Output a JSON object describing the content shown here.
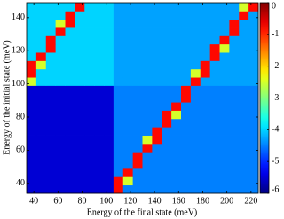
{
  "chart_data": {
    "type": "heatmap",
    "xlabel": "Energy of the final state (meV)",
    "ylabel": "Energy of the initial state (meV)",
    "colormap": "jet",
    "x": [
      38,
      46,
      54,
      62,
      70,
      78,
      86,
      94,
      102,
      110,
      118,
      126,
      134,
      142,
      150,
      158,
      166,
      174,
      182,
      190,
      198,
      206,
      214,
      222
    ],
    "y": [
      36.5,
      41.5,
      46.5,
      51.5,
      56.5,
      61.5,
      66.5,
      71.5,
      76.5,
      81.5,
      86.5,
      91.5,
      96.5,
      101.5,
      106.5,
      111.5,
      116.5,
      121.5,
      126.5,
      131.5,
      136.5,
      141.5,
      146.5
    ],
    "z": [
      [
        -5.5,
        -5.5,
        -5.5,
        -5.5,
        -5.5,
        -5.5,
        -5.5,
        -5.5,
        -5.5,
        -0.8,
        -4.5,
        -4.5,
        -4.5,
        -4.5,
        -4.5,
        -4.5,
        -4.5,
        -4.5,
        -4.5,
        -4.5,
        -4.5,
        -4.5,
        -4.5,
        -4.5
      ],
      [
        -5.5,
        -5.5,
        -5.5,
        -5.5,
        -5.5,
        -5.5,
        -5.5,
        -5.5,
        -5.5,
        -0.8,
        -2.5,
        -4.5,
        -4.5,
        -4.5,
        -4.5,
        -4.5,
        -4.5,
        -4.5,
        -4.5,
        -4.5,
        -4.5,
        -4.5,
        -4.5,
        -4.5
      ],
      [
        -5.5,
        -5.5,
        -5.5,
        -5.5,
        -5.5,
        -5.5,
        -5.5,
        -5.5,
        -5.5,
        -4.5,
        -0.8,
        -4.5,
        -4.5,
        -4.5,
        -4.5,
        -4.5,
        -4.5,
        -4.5,
        -4.5,
        -4.5,
        -4.5,
        -4.5,
        -4.5,
        -4.5
      ],
      [
        -5.5,
        -5.5,
        -5.5,
        -5.5,
        -5.5,
        -5.5,
        -5.5,
        -5.5,
        -5.5,
        -4.5,
        -4.5,
        -0.8,
        -4.5,
        -4.5,
        -4.5,
        -4.5,
        -4.5,
        -4.5,
        -4.5,
        -4.5,
        -4.5,
        -4.5,
        -4.5,
        -4.5
      ],
      [
        -5.5,
        -5.5,
        -5.5,
        -5.5,
        -5.5,
        -5.5,
        -5.5,
        -5.5,
        -5.5,
        -4.5,
        -4.5,
        -0.8,
        -4.5,
        -4.5,
        -4.5,
        -4.5,
        -4.5,
        -4.5,
        -4.5,
        -4.5,
        -4.5,
        -4.5,
        -4.5,
        -4.5
      ],
      [
        -5.5,
        -5.5,
        -5.5,
        -5.5,
        -5.5,
        -5.5,
        -5.5,
        -5.5,
        -5.5,
        -4.5,
        -4.5,
        -4.5,
        -0.8,
        -4.5,
        -4.5,
        -4.5,
        -4.5,
        -4.5,
        -4.5,
        -4.5,
        -4.5,
        -4.5,
        -4.5,
        -4.5
      ],
      [
        -5.5,
        -5.5,
        -5.5,
        -5.5,
        -5.5,
        -5.5,
        -5.5,
        -5.5,
        -5.5,
        -4.5,
        -4.5,
        -4.5,
        -2.5,
        -0.8,
        -4.5,
        -4.5,
        -4.5,
        -4.5,
        -4.5,
        -4.5,
        -4.5,
        -4.5,
        -4.5,
        -4.5
      ],
      [
        -5.5,
        -5.5,
        -5.5,
        -5.5,
        -5.5,
        -5.5,
        -5.5,
        -5.5,
        -5.5,
        -4.5,
        -4.5,
        -4.5,
        -4.5,
        -0.8,
        -4.5,
        -4.5,
        -4.5,
        -4.5,
        -4.5,
        -4.5,
        -4.5,
        -4.5,
        -4.5,
        -4.5
      ],
      [
        -5.5,
        -5.5,
        -5.5,
        -5.5,
        -5.5,
        -5.5,
        -5.5,
        -5.5,
        -5.5,
        -4.5,
        -4.5,
        -4.5,
        -4.5,
        -4.5,
        -0.8,
        -4.5,
        -4.5,
        -4.5,
        -4.5,
        -4.5,
        -4.5,
        -4.5,
        -4.5,
        -4.5
      ],
      [
        -5.5,
        -5.5,
        -5.5,
        -5.5,
        -5.5,
        -5.5,
        -5.5,
        -5.5,
        -5.5,
        -4.5,
        -4.5,
        -4.5,
        -4.5,
        -4.5,
        -0.8,
        -2.5,
        -4.5,
        -4.5,
        -4.5,
        -4.5,
        -4.5,
        -4.5,
        -4.5,
        -4.5
      ],
      [
        -5.5,
        -5.5,
        -5.5,
        -5.5,
        -5.5,
        -5.5,
        -5.5,
        -5.5,
        -5.5,
        -4.5,
        -4.5,
        -4.5,
        -4.5,
        -4.5,
        -4.5,
        -0.8,
        -4.5,
        -4.5,
        -4.5,
        -4.5,
        -4.5,
        -4.5,
        -4.5,
        -4.5
      ],
      [
        -5.5,
        -5.5,
        -5.5,
        -5.5,
        -5.5,
        -5.5,
        -5.5,
        -5.5,
        -5.5,
        -4.5,
        -4.5,
        -4.5,
        -4.5,
        -4.5,
        -4.5,
        -4.5,
        -0.8,
        -4.5,
        -4.5,
        -4.5,
        -4.5,
        -4.5,
        -4.5,
        -4.5
      ],
      [
        -5.5,
        -5.5,
        -5.5,
        -5.5,
        -5.5,
        -5.5,
        -5.5,
        -5.5,
        -5.5,
        -4.5,
        -4.5,
        -4.5,
        -4.5,
        -4.5,
        -4.5,
        -4.5,
        -0.8,
        -4.5,
        -4.5,
        -4.5,
        -4.5,
        -4.5,
        -4.5,
        -4.5
      ],
      [
        -2.5,
        -4,
        -4,
        -4,
        -4,
        -4,
        -4,
        -4,
        -4,
        -4.3,
        -4.3,
        -4.3,
        -4.3,
        -4.3,
        -4.3,
        -4.3,
        -4.3,
        -0.8,
        -4.3,
        -4.3,
        -4.3,
        -4.3,
        -4.3,
        -4.3
      ],
      [
        -0.8,
        -4,
        -4,
        -4,
        -4,
        -4,
        -4,
        -4,
        -4,
        -4.3,
        -4.3,
        -4.3,
        -4.3,
        -4.3,
        -4.3,
        -4.3,
        -4.3,
        -2.5,
        -0.8,
        -4.3,
        -4.3,
        -4.3,
        -4.3,
        -4.3
      ],
      [
        -0.8,
        -2.5,
        -4,
        -4,
        -4,
        -4,
        -4,
        -4,
        -4,
        -4.3,
        -4.3,
        -4.3,
        -4.3,
        -4.3,
        -4.3,
        -4.3,
        -4.3,
        -4.3,
        -0.8,
        -4.3,
        -4.3,
        -4.3,
        -4.3,
        -4.3
      ],
      [
        -4,
        -0.8,
        -4,
        -4,
        -4,
        -4,
        -4,
        -4,
        -4,
        -4.3,
        -4.3,
        -4.3,
        -4.3,
        -4.3,
        -4.3,
        -4.3,
        -4.3,
        -4.3,
        -4.3,
        -0.8,
        -4.3,
        -4.3,
        -4.3,
        -4.3
      ],
      [
        -4,
        -4,
        -0.8,
        -4,
        -4,
        -4,
        -4,
        -4,
        -4,
        -4.3,
        -4.3,
        -4.3,
        -4.3,
        -4.3,
        -4.3,
        -4.3,
        -4.3,
        -4.3,
        -4.3,
        -0.8,
        -2.5,
        -4.3,
        -4.3,
        -4.3
      ],
      [
        -4,
        -4,
        -0.8,
        -4,
        -4,
        -4,
        -4,
        -4,
        -4,
        -4.3,
        -4.3,
        -4.3,
        -4.3,
        -4.3,
        -4.3,
        -4.3,
        -4.3,
        -4.3,
        -4.3,
        -4.3,
        -0.8,
        -4.3,
        -4.3,
        -4.3
      ],
      [
        -4,
        -4,
        -4,
        -0.8,
        -4,
        -4,
        -4,
        -4,
        -4,
        -4.3,
        -4.3,
        -4.3,
        -4.3,
        -4.3,
        -4.3,
        -4.3,
        -4.3,
        -4.3,
        -4.3,
        -4.3,
        -4.3,
        -0.8,
        -4.3,
        -4.3
      ],
      [
        -4,
        -4,
        -4,
        -2.5,
        -0.8,
        -4,
        -4,
        -4,
        -4,
        -4.3,
        -4.3,
        -4.3,
        -4.3,
        -4.3,
        -4.3,
        -4.3,
        -4.3,
        -4.3,
        -4.3,
        -4.3,
        -4.3,
        -0.8,
        -4.3,
        -4.3
      ],
      [
        -4,
        -4,
        -4,
        -4,
        -0.8,
        -4,
        -4,
        -4,
        -4,
        -4.3,
        -4.3,
        -4.3,
        -4.3,
        -4.3,
        -4.3,
        -4.3,
        -4.3,
        -4.3,
        -4.3,
        -4.3,
        -4.3,
        -4.3,
        -0.8,
        -4.3
      ],
      [
        -4,
        -4,
        -4,
        -4,
        -4,
        -0.8,
        -4,
        -4,
        -4,
        -4.3,
        -4.3,
        -4.3,
        -4.3,
        -4.3,
        -4.3,
        -4.3,
        -4.3,
        -4.3,
        -4.3,
        -4.3,
        -4.3,
        -4.3,
        -2.5,
        -0.8
      ]
    ],
    "xlim": [
      34,
      226
    ],
    "xticks": [
      40,
      60,
      80,
      100,
      120,
      140,
      160,
      180,
      200,
      220
    ],
    "ylim": [
      34,
      149
    ],
    "yticks": [
      40,
      60,
      80,
      100,
      120,
      140
    ],
    "zlim": [
      -6,
      0
    ],
    "zticks": [
      -6,
      -5,
      -4,
      -3,
      -2,
      -1,
      0
    ]
  }
}
